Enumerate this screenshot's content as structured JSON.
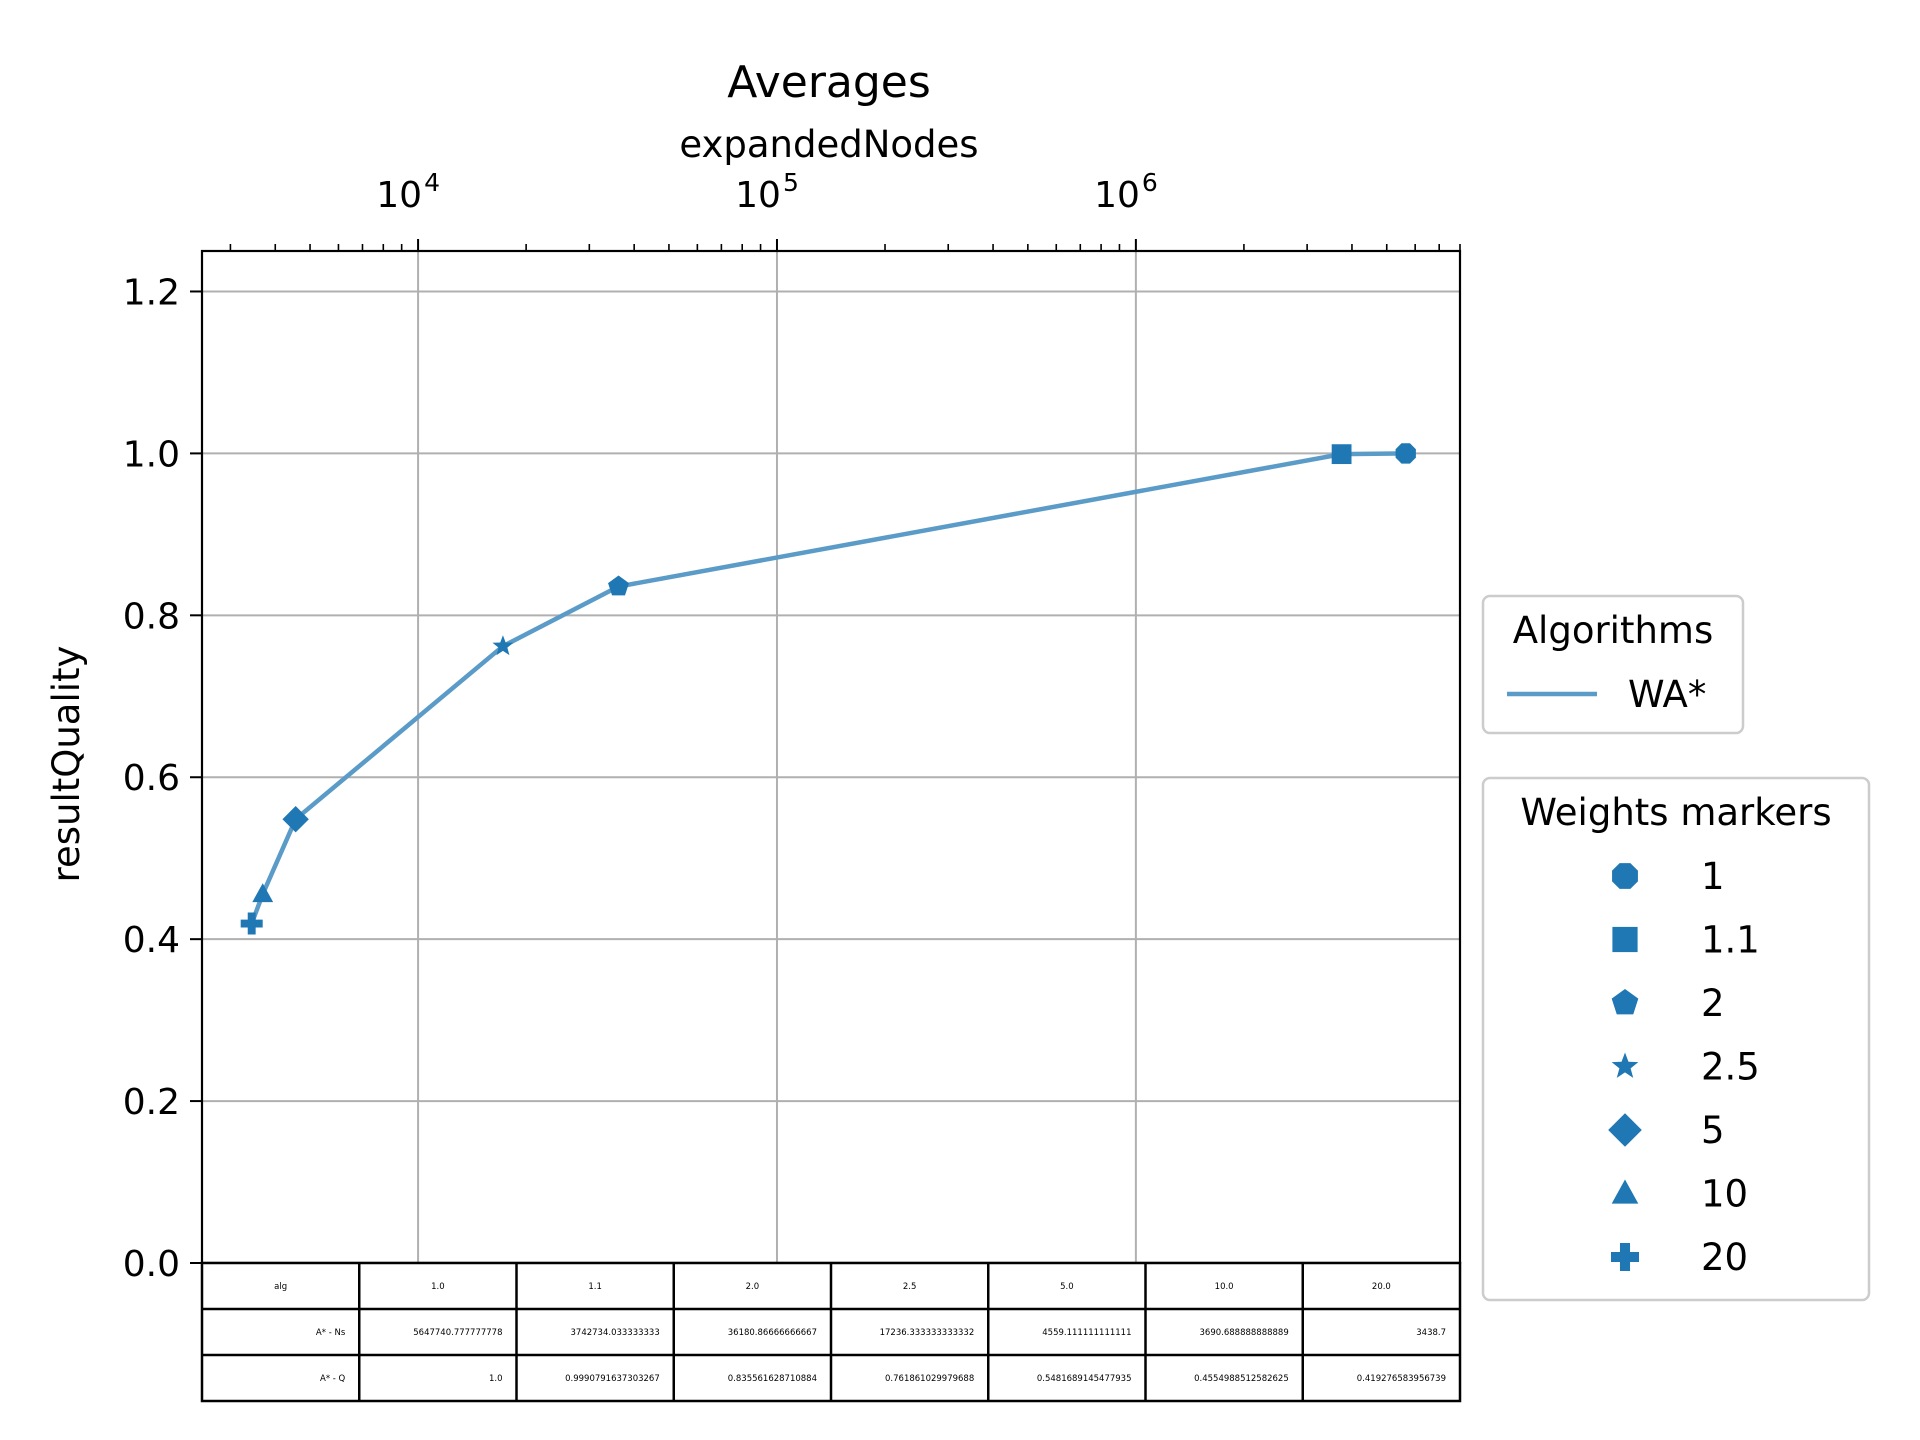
{
  "chart_data": {
    "type": "line",
    "title": "Averages",
    "xlabel": "expandedNodes",
    "ylabel": "resultQuality",
    "x_scale": "log",
    "x_axis_position": "top",
    "xlim": [
      2500,
      8000000
    ],
    "ylim": [
      0.0,
      1.25
    ],
    "x_ticks": [
      {
        "value": 10000,
        "base": "10",
        "exp": "4"
      },
      {
        "value": 100000,
        "base": "10",
        "exp": "5"
      },
      {
        "value": 1000000,
        "base": "10",
        "exp": "6"
      }
    ],
    "y_ticks": [
      "0.0",
      "0.2",
      "0.4",
      "0.6",
      "0.8",
      "1.0",
      "1.2"
    ],
    "grid": true,
    "line_color": "#5b9bc8",
    "marker_color": "#1f77b4",
    "series": [
      {
        "name": "WA*",
        "points": [
          {
            "weight": "1",
            "marker": "octagon",
            "x": 5647740.777777778,
            "y": 1.0
          },
          {
            "weight": "1.1",
            "marker": "square",
            "x": 3742734.033333333,
            "y": 0.9990791637303267
          },
          {
            "weight": "2",
            "marker": "pentagon",
            "x": 36180.86666666667,
            "y": 0.835561628710884
          },
          {
            "weight": "2.5",
            "marker": "star",
            "x": 17236.333333333332,
            "y": 0.761861029979688
          },
          {
            "weight": "5",
            "marker": "diamond",
            "x": 4559.111111111111,
            "y": 0.5481689145477935
          },
          {
            "weight": "10",
            "marker": "triangle",
            "x": 3690.688888888889,
            "y": 0.4554988512582625
          },
          {
            "weight": "20",
            "marker": "plus",
            "x": 3438.7,
            "y": 0.419276583956739
          }
        ]
      }
    ],
    "legend_algorithms": {
      "title": "Algorithms",
      "entries": [
        "WA*"
      ]
    },
    "legend_weights": {
      "title": "Weights markers",
      "entries": [
        {
          "label": "1",
          "marker": "octagon"
        },
        {
          "label": "1.1",
          "marker": "square"
        },
        {
          "label": "2",
          "marker": "pentagon"
        },
        {
          "label": "2.5",
          "marker": "star"
        },
        {
          "label": "5",
          "marker": "diamond"
        },
        {
          "label": "10",
          "marker": "triangle"
        },
        {
          "label": "20",
          "marker": "plus"
        }
      ]
    },
    "table": {
      "rows": [
        [
          "alg",
          "1.0",
          "1.1",
          "2.0",
          "2.5",
          "5.0",
          "10.0",
          "20.0"
        ],
        [
          "A* - Ns",
          "5647740.777777778",
          "3742734.033333333",
          "36180.86666666667",
          "17236.333333333332",
          "4559.111111111111",
          "3690.688888888889",
          "3438.7"
        ],
        [
          "A* - Q",
          "1.0",
          "0.9990791637303267",
          "0.835561628710884",
          "0.761861029979688",
          "0.5481689145477935",
          "0.4554988512582625",
          "0.419276583956739"
        ]
      ]
    }
  }
}
